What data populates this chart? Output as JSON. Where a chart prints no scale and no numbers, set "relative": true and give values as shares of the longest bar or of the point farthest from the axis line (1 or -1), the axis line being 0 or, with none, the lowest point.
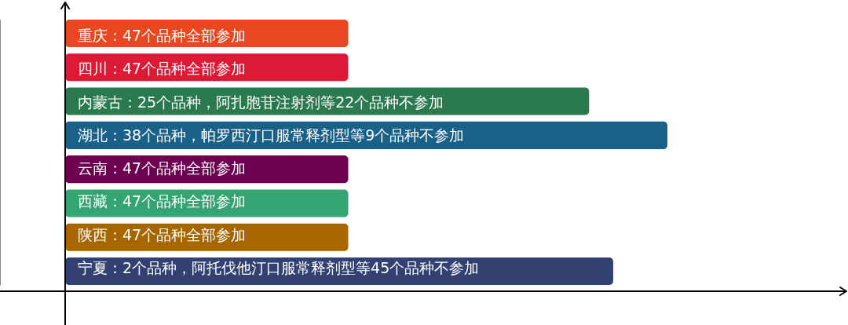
{
  "chart_data": {
    "type": "bar",
    "orientation": "horizontal",
    "relative": true,
    "categories": [
      "重庆：47个品种全部参加",
      "四川：47个品种全部参加",
      "内蒙古：25个品种，阿扎胞苷注射剂等22个品种不参加",
      "湖北：38个品种，帕罗西汀口服常释剂型等9个品种不参加",
      "云南：47个品种全部参加",
      "西藏：47个品种全部参加",
      "陕西：47个品种全部参加",
      "宁夏：2个品种，阿托伐他汀口服常释剂型等45个品种不参加"
    ],
    "values": [
      0.47,
      0.47,
      0.87,
      1,
      0.47,
      0.47,
      0.47,
      0.91
    ],
    "colors": [
      "#e8471f",
      "#dc1a35",
      "#2b7a4f",
      "#1a6189",
      "#6e0051",
      "#34a572",
      "#a86600",
      "#334172"
    ]
  }
}
